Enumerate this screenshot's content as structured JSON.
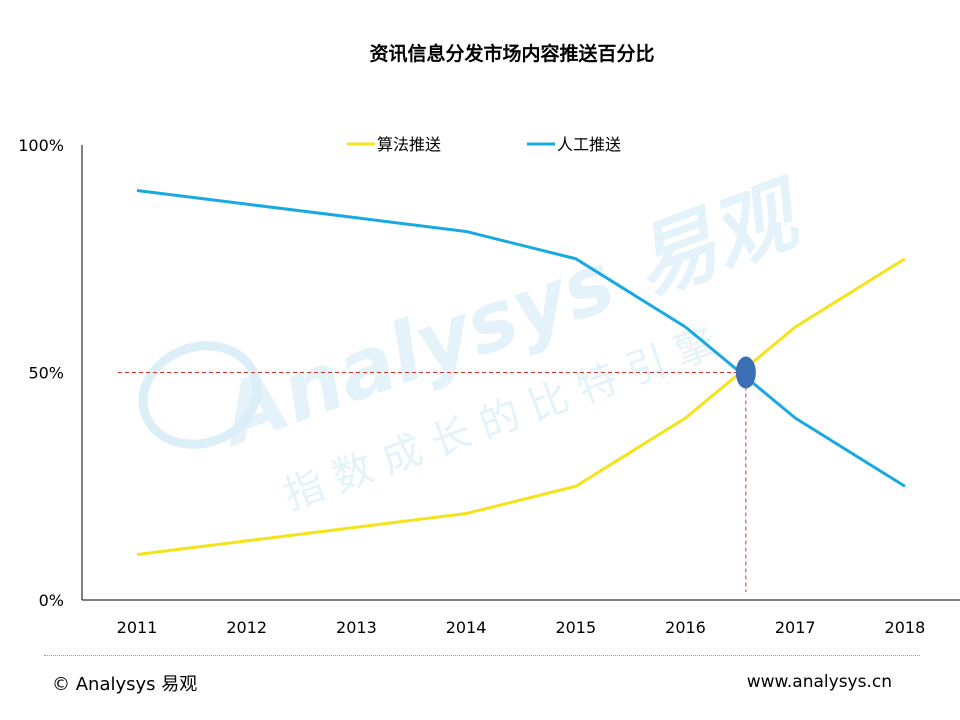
{
  "chart_data": {
    "type": "line",
    "title": "资讯信息分发市场内容推送百分比",
    "categories": [
      "2011",
      "2012",
      "2013",
      "2014",
      "2015",
      "2016",
      "2017",
      "2018"
    ],
    "series": [
      {
        "name": "算法推送",
        "color": "#f5e31a",
        "values": [
          10,
          13,
          16,
          19,
          25,
          40,
          60,
          75
        ]
      },
      {
        "name": "人工推送",
        "color": "#19a9e1",
        "values": [
          90,
          87,
          84,
          81,
          75,
          60,
          40,
          25
        ]
      }
    ],
    "y_ticks": [
      {
        "value": 0,
        "label": "0%"
      },
      {
        "value": 50,
        "label": "50%"
      },
      {
        "value": 100,
        "label": "100%"
      }
    ],
    "ylim": [
      0,
      100
    ],
    "legend_position": "top-center",
    "grid": false,
    "annotation": {
      "crossover_year": 2016.55,
      "crossover_value": 50,
      "marker_color": "#3a6fb6",
      "guide_color": "#d9362f"
    }
  },
  "watermark": {
    "brand": "Analysys 易观",
    "slogan": "指数成长的比特引擎"
  },
  "footer": {
    "left": "© Analysys 易观",
    "right": "www.analysys.cn"
  }
}
